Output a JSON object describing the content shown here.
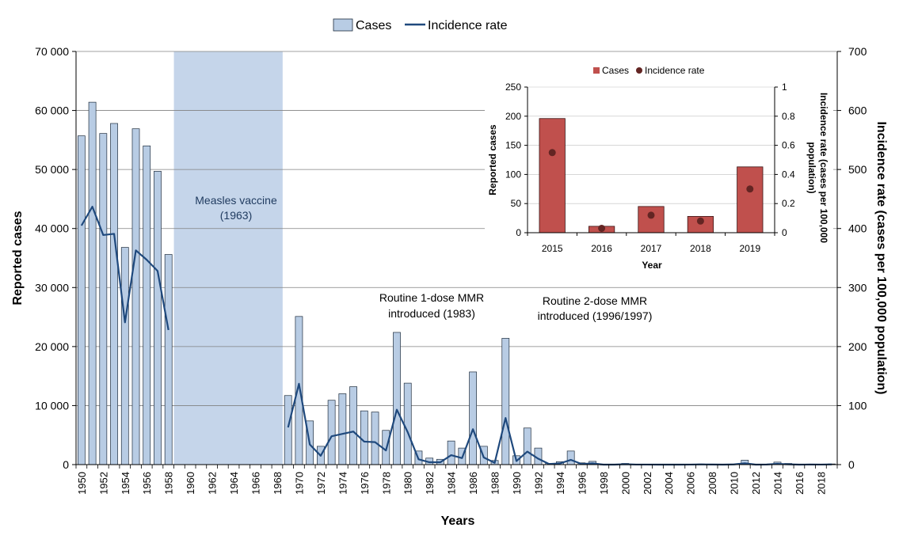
{
  "chart_data": [
    {
      "type": "bar+line",
      "title": "",
      "legend": {
        "position": "top-center",
        "items": [
          {
            "label": "Cases",
            "symbol": "bar",
            "color": "#b8cce4"
          },
          {
            "label": "Incidence rate",
            "symbol": "line",
            "color": "#1f497d"
          }
        ]
      },
      "xlabel": "Years",
      "ylabel": "Reported cases",
      "y2label": "Incidence rate (cases per 100,000 population)",
      "ylim": [
        0,
        70000
      ],
      "y2lim": [
        0,
        700
      ],
      "y_ticks": [
        0,
        10000,
        20000,
        30000,
        40000,
        50000,
        60000,
        70000
      ],
      "y_tick_labels": [
        "0",
        "10 000",
        "20 000",
        "30 000",
        "40 000",
        "50 000",
        "60 000",
        "70 000"
      ],
      "y2_ticks": [
        0,
        100,
        200,
        300,
        400,
        500,
        600,
        700
      ],
      "x_tick_labels": [
        "1950",
        "1952",
        "1954",
        "1956",
        "1958",
        "1960",
        "1962",
        "1964",
        "1966",
        "1968",
        "1970",
        "1972",
        "1974",
        "1976",
        "1978",
        "1980",
        "1982",
        "1984",
        "1986",
        "1988",
        "1990",
        "1992",
        "1994",
        "1996",
        "1998",
        "2000",
        "2002",
        "2004",
        "2006",
        "2008",
        "2010",
        "2012",
        "2014",
        "2016",
        "2018"
      ],
      "first_year": 1950,
      "last_year": 2019,
      "cases": [
        {
          "year": 1950,
          "value": 55700
        },
        {
          "year": 1951,
          "value": 61400
        },
        {
          "year": 1952,
          "value": 56100
        },
        {
          "year": 1953,
          "value": 57800
        },
        {
          "year": 1954,
          "value": 36800
        },
        {
          "year": 1955,
          "value": 56900
        },
        {
          "year": 1956,
          "value": 54000
        },
        {
          "year": 1957,
          "value": 49700
        },
        {
          "year": 1958,
          "value": 35600
        },
        {
          "year": 1969,
          "value": 11700
        },
        {
          "year": 1970,
          "value": 25100
        },
        {
          "year": 1971,
          "value": 7400
        },
        {
          "year": 1972,
          "value": 3100
        },
        {
          "year": 1973,
          "value": 10900
        },
        {
          "year": 1974,
          "value": 12000
        },
        {
          "year": 1975,
          "value": 13200
        },
        {
          "year": 1976,
          "value": 9100
        },
        {
          "year": 1977,
          "value": 8900
        },
        {
          "year": 1978,
          "value": 5800
        },
        {
          "year": 1979,
          "value": 22400
        },
        {
          "year": 1980,
          "value": 13800
        },
        {
          "year": 1981,
          "value": 2300
        },
        {
          "year": 1982,
          "value": 1100
        },
        {
          "year": 1983,
          "value": 900
        },
        {
          "year": 1984,
          "value": 4000
        },
        {
          "year": 1985,
          "value": 2800
        },
        {
          "year": 1986,
          "value": 15700
        },
        {
          "year": 1987,
          "value": 3100
        },
        {
          "year": 1988,
          "value": 700
        },
        {
          "year": 1989,
          "value": 21400
        },
        {
          "year": 1990,
          "value": 1500
        },
        {
          "year": 1991,
          "value": 6200
        },
        {
          "year": 1992,
          "value": 2800
        },
        {
          "year": 1993,
          "value": 200
        },
        {
          "year": 1994,
          "value": 500
        },
        {
          "year": 1995,
          "value": 2300
        },
        {
          "year": 1996,
          "value": 300
        },
        {
          "year": 1997,
          "value": 550
        },
        {
          "year": 1998,
          "value": 10
        },
        {
          "year": 1999,
          "value": 30
        },
        {
          "year": 2000,
          "value": 200
        },
        {
          "year": 2001,
          "value": 35
        },
        {
          "year": 2002,
          "value": 44
        },
        {
          "year": 2003,
          "value": 16
        },
        {
          "year": 2004,
          "value": 10
        },
        {
          "year": 2005,
          "value": 6
        },
        {
          "year": 2006,
          "value": 19
        },
        {
          "year": 2007,
          "value": 100
        },
        {
          "year": 2008,
          "value": 60
        },
        {
          "year": 2009,
          "value": 10
        },
        {
          "year": 2010,
          "value": 100
        },
        {
          "year": 2011,
          "value": 750
        },
        {
          "year": 2012,
          "value": 10
        },
        {
          "year": 2013,
          "value": 80
        },
        {
          "year": 2014,
          "value": 420
        },
        {
          "year": 2015,
          "value": 196
        },
        {
          "year": 2016,
          "value": 11
        },
        {
          "year": 2017,
          "value": 45
        },
        {
          "year": 2018,
          "value": 28
        },
        {
          "year": 2019,
          "value": 113
        }
      ],
      "incidence_segments": [
        [
          {
            "year": 1950,
            "value": 405
          },
          {
            "year": 1951,
            "value": 437
          },
          {
            "year": 1952,
            "value": 389
          },
          {
            "year": 1953,
            "value": 391
          },
          {
            "year": 1954,
            "value": 241
          },
          {
            "year": 1955,
            "value": 363
          },
          {
            "year": 1956,
            "value": 347
          },
          {
            "year": 1957,
            "value": 328
          },
          {
            "year": 1958,
            "value": 228
          }
        ],
        [
          {
            "year": 1969,
            "value": 63
          },
          {
            "year": 1970,
            "value": 137
          },
          {
            "year": 1971,
            "value": 34
          },
          {
            "year": 1972,
            "value": 15
          },
          {
            "year": 1973,
            "value": 48
          },
          {
            "year": 1974,
            "value": 52
          },
          {
            "year": 1975,
            "value": 56
          },
          {
            "year": 1976,
            "value": 39
          },
          {
            "year": 1977,
            "value": 38
          },
          {
            "year": 1978,
            "value": 24
          },
          {
            "year": 1979,
            "value": 93
          },
          {
            "year": 1980,
            "value": 55
          },
          {
            "year": 1981,
            "value": 9
          },
          {
            "year": 1982,
            "value": 4
          },
          {
            "year": 1983,
            "value": 4
          },
          {
            "year": 1984,
            "value": 16
          },
          {
            "year": 1985,
            "value": 11
          },
          {
            "year": 1986,
            "value": 60
          },
          {
            "year": 1987,
            "value": 12
          },
          {
            "year": 1988,
            "value": 3
          },
          {
            "year": 1989,
            "value": 79
          },
          {
            "year": 1990,
            "value": 6
          },
          {
            "year": 1991,
            "value": 22
          },
          {
            "year": 1992,
            "value": 10
          },
          {
            "year": 1993,
            "value": 1
          },
          {
            "year": 1994,
            "value": 2
          },
          {
            "year": 1995,
            "value": 8
          },
          {
            "year": 1996,
            "value": 1
          },
          {
            "year": 1997,
            "value": 2
          },
          {
            "year": 1998,
            "value": 0
          },
          {
            "year": 1999,
            "value": 0
          },
          {
            "year": 2000,
            "value": 0.7
          },
          {
            "year": 2001,
            "value": 0.1
          },
          {
            "year": 2002,
            "value": 0.1
          },
          {
            "year": 2003,
            "value": 0
          },
          {
            "year": 2004,
            "value": 0
          },
          {
            "year": 2005,
            "value": 0
          },
          {
            "year": 2006,
            "value": 0.1
          },
          {
            "year": 2007,
            "value": 0.3
          },
          {
            "year": 2008,
            "value": 0.2
          },
          {
            "year": 2009,
            "value": 0
          },
          {
            "year": 2010,
            "value": 0.3
          },
          {
            "year": 2011,
            "value": 2.2
          },
          {
            "year": 2012,
            "value": 0
          },
          {
            "year": 2013,
            "value": 0.2
          },
          {
            "year": 2014,
            "value": 1.2
          },
          {
            "year": 2015,
            "value": 0.55
          },
          {
            "year": 2016,
            "value": 0.03
          },
          {
            "year": 2017,
            "value": 0.12
          },
          {
            "year": 2018,
            "value": 0.08
          },
          {
            "year": 2019,
            "value": 0.3
          }
        ]
      ],
      "vaccine_band": {
        "from_year": 1959,
        "to_year": 1968,
        "label_line1": "Measles vaccine",
        "label_line2": "(1963)",
        "color": "#c5d5ea"
      },
      "annotations": [
        {
          "line1": "Routine 1-dose MMR",
          "line2": "introduced  (1983)"
        },
        {
          "line1": "Routine 2-dose MMR",
          "line2": "introduced  (1996/1997)"
        }
      ],
      "colors": {
        "bar_fill": "#b8cce4",
        "bar_stroke": "#1f2d3d",
        "line": "#1f497d",
        "grid": "#808080"
      }
    },
    {
      "type": "bar+scatter",
      "legend": {
        "position": "top-right",
        "items": [
          {
            "label": "Cases",
            "symbol": "square",
            "color": "#c0504d"
          },
          {
            "label": "Incidence rate",
            "symbol": "dot",
            "color": "#632523"
          }
        ]
      },
      "xlabel": "Year",
      "ylabel": "Reported cases",
      "y2label_line1": "Incidence rate (cases per 100,000",
      "y2label_line2": "population)",
      "categories": [
        "2015",
        "2016",
        "2017",
        "2018",
        "2019"
      ],
      "cases": [
        196,
        11,
        45,
        28,
        113
      ],
      "incidence": [
        0.55,
        0.03,
        0.12,
        0.08,
        0.3
      ],
      "ylim": [
        0,
        250
      ],
      "y2lim": [
        0,
        1
      ],
      "y_ticks": [
        0,
        50,
        100,
        150,
        200,
        250
      ],
      "y2_ticks": [
        0,
        0.2,
        0.4,
        0.6,
        0.8,
        1
      ],
      "y2_tick_labels": [
        "0",
        "0.2",
        "0.4",
        "0.6",
        "0.8",
        "1"
      ],
      "colors": {
        "bar_fill": "#c0504d",
        "bar_stroke": "#3a1414",
        "dot": "#632523"
      }
    }
  ]
}
